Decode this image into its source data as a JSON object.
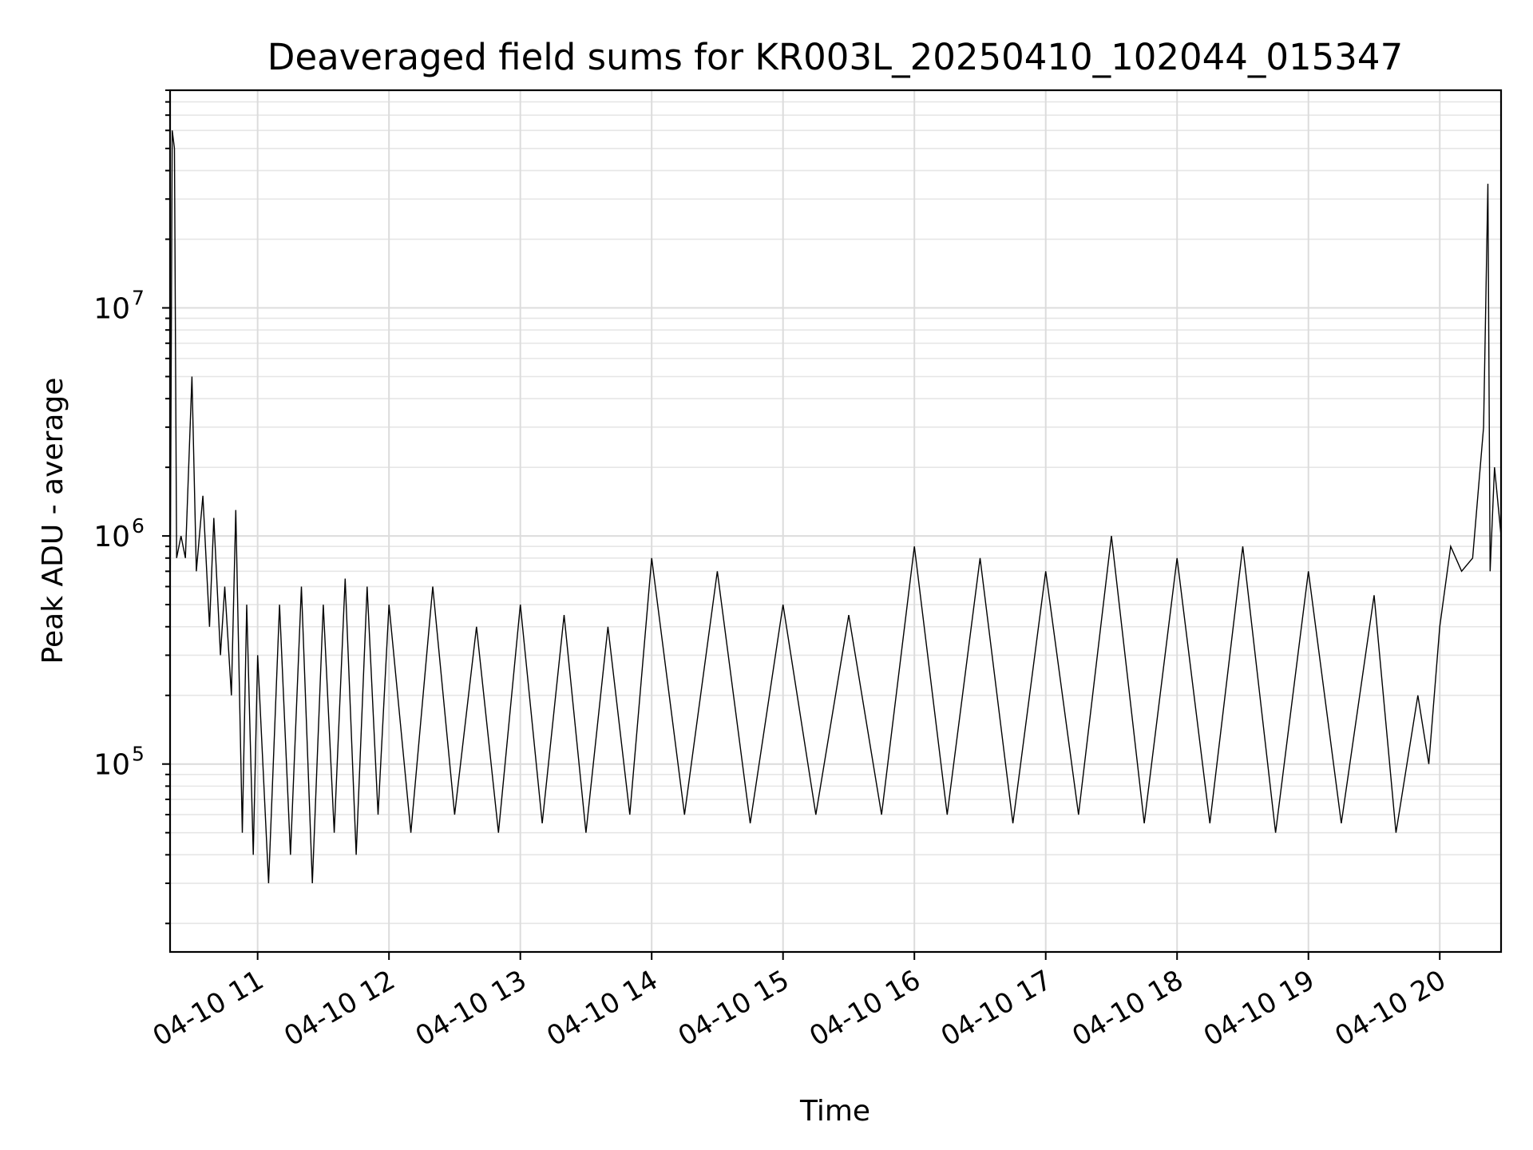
{
  "chart_data": {
    "type": "line",
    "title": "Deaveraged field sums for KR003L_20250410_102044_015347",
    "xlabel": "Time",
    "ylabel": "Peak ADU - average",
    "yscale": "log",
    "ylim": [
      15000,
      90000000
    ],
    "xlim": [
      "04-10 10:20",
      "04-10 20:28"
    ],
    "x_ticks": [
      {
        "label": "04-10 11",
        "value": "04-10 11:00"
      },
      {
        "label": "04-10 12",
        "value": "04-10 12:00"
      },
      {
        "label": "04-10 13",
        "value": "04-10 13:00"
      },
      {
        "label": "04-10 14",
        "value": "04-10 14:00"
      },
      {
        "label": "04-10 15",
        "value": "04-10 15:00"
      },
      {
        "label": "04-10 16",
        "value": "04-10 16:00"
      },
      {
        "label": "04-10 17",
        "value": "04-10 17:00"
      },
      {
        "label": "04-10 18",
        "value": "04-10 18:00"
      },
      {
        "label": "04-10 19",
        "value": "04-10 19:00"
      },
      {
        "label": "04-10 20",
        "value": "04-10 20:00"
      }
    ],
    "y_ticks": [
      {
        "base": "10",
        "exp": "5",
        "value": 100000
      },
      {
        "base": "10",
        "exp": "6",
        "value": 1000000
      },
      {
        "base": "10",
        "exp": "7",
        "value": 10000000
      }
    ],
    "grid": true,
    "line_color": "#000000",
    "series": [
      {
        "x": [
          "04-10 10:20",
          "04-10 10:21",
          "04-10 10:22",
          "04-10 10:23",
          "04-10 10:25",
          "04-10 10:27",
          "04-10 10:30",
          "04-10 10:32",
          "04-10 10:35",
          "04-10 10:38",
          "04-10 10:40",
          "04-10 10:43",
          "04-10 10:45",
          "04-10 10:48",
          "04-10 10:50",
          "04-10 10:53",
          "04-10 10:55",
          "04-10 10:58",
          "04-10 11:00",
          "04-10 11:05",
          "04-10 11:10",
          "04-10 11:15",
          "04-10 11:20",
          "04-10 11:25",
          "04-10 11:30",
          "04-10 11:35",
          "04-10 11:40",
          "04-10 11:45",
          "04-10 11:50",
          "04-10 11:55",
          "04-10 12:00",
          "04-10 12:10",
          "04-10 12:20",
          "04-10 12:30",
          "04-10 12:40",
          "04-10 12:50",
          "04-10 13:00",
          "04-10 13:10",
          "04-10 13:20",
          "04-10 13:30",
          "04-10 13:40",
          "04-10 13:50",
          "04-10 14:00",
          "04-10 14:15",
          "04-10 14:30",
          "04-10 14:45",
          "04-10 15:00",
          "04-10 15:15",
          "04-10 15:30",
          "04-10 15:45",
          "04-10 16:00",
          "04-10 16:15",
          "04-10 16:30",
          "04-10 16:45",
          "04-10 17:00",
          "04-10 17:15",
          "04-10 17:30",
          "04-10 17:45",
          "04-10 18:00",
          "04-10 18:15",
          "04-10 18:30",
          "04-10 18:45",
          "04-10 19:00",
          "04-10 19:15",
          "04-10 19:30",
          "04-10 19:40",
          "04-10 19:50",
          "04-10 19:55",
          "04-10 20:00",
          "04-10 20:05",
          "04-10 20:10",
          "04-10 20:15",
          "04-10 20:20",
          "04-10 20:22",
          "04-10 20:23",
          "04-10 20:25",
          "04-10 20:28"
        ],
        "y": [
          400000,
          60000000,
          50000000,
          800000,
          1000000,
          800000,
          5000000,
          700000,
          1500000,
          400000,
          1200000,
          300000,
          600000,
          200000,
          1300000,
          50000,
          500000,
          40000,
          300000,
          30000,
          500000,
          40000,
          600000,
          30000,
          500000,
          50000,
          650000,
          40000,
          600000,
          60000,
          500000,
          50000,
          600000,
          60000,
          400000,
          50000,
          500000,
          55000,
          450000,
          50000,
          400000,
          60000,
          800000,
          60000,
          700000,
          55000,
          500000,
          60000,
          450000,
          60000,
          900000,
          60000,
          800000,
          55000,
          700000,
          60000,
          1000000,
          55000,
          800000,
          55000,
          900000,
          50000,
          700000,
          55000,
          550000,
          50000,
          200000,
          100000,
          400000,
          900000,
          700000,
          800000,
          3000000,
          35000000,
          700000,
          2000000,
          1000000
        ]
      }
    ]
  }
}
